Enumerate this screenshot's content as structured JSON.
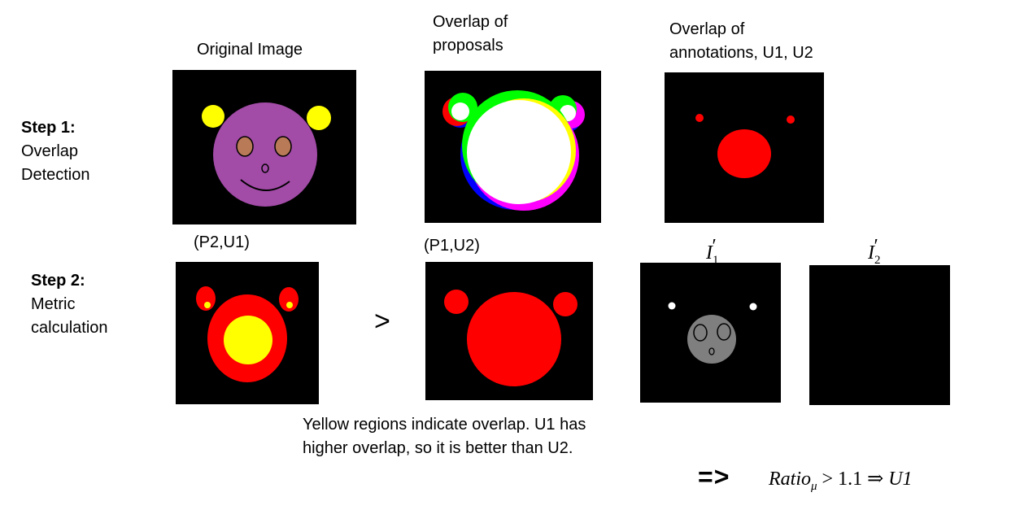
{
  "step1": {
    "title": "Step 1:",
    "line1": "Overlap",
    "line2": "Detection"
  },
  "step2": {
    "title": "Step 2:",
    "line1": "Metric",
    "line2": "calculation"
  },
  "headers": {
    "original": "Original Image",
    "proposals_1": "Overlap of",
    "proposals_2": "proposals",
    "annotations_1": "Overlap of",
    "annotations_2": "annotations, U1, U2"
  },
  "pairs": {
    "p2u1": "(P2,U1)",
    "p1u2": "(P1,U2)"
  },
  "image_labels": {
    "i1_base": "I",
    "i1_sub": "1",
    "i1_prime": "′",
    "i2_base": "I",
    "i2_sub": "2",
    "i2_prime": "′"
  },
  "comparison": ">",
  "caption": {
    "line1": "Yellow regions indicate overlap. U1 has",
    "line2": "higher overlap, so it is better than U2."
  },
  "result": {
    "arrow": "=>",
    "ratio": "Ratio",
    "ratio_sub": "μ",
    "op": " > ",
    "value": "1.1",
    "implies": " ⇒ ",
    "winner": "U1"
  },
  "colors": {
    "purple": "#a24ba7",
    "yellow": "#ffff00",
    "red": "#ff0000",
    "brown": "#b97a57",
    "gray": "#7f7f7f"
  }
}
